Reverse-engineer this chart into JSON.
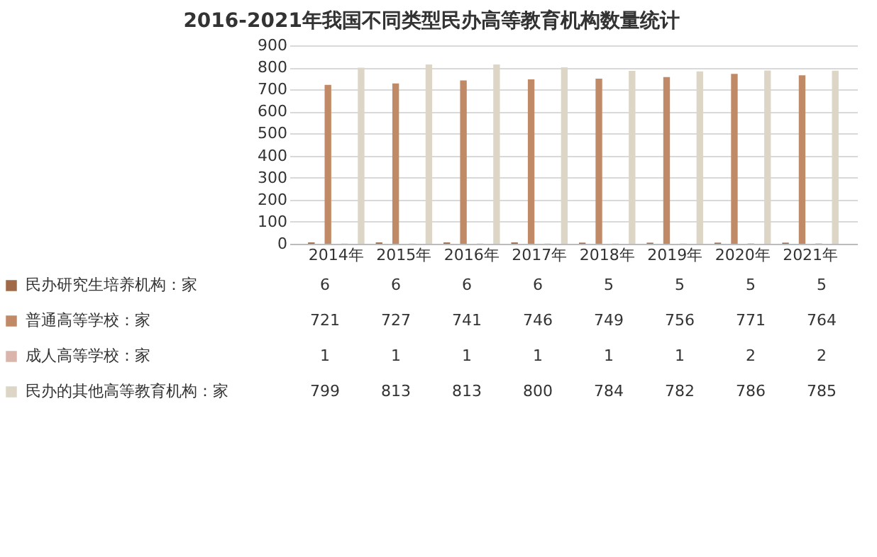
{
  "chart_data": {
    "type": "bar",
    "title": "2016-2021年我国不同类型民办高等教育机构数量统计",
    "categories": [
      "2014年",
      "2015年",
      "2016年",
      "2017年",
      "2018年",
      "2019年",
      "2020年",
      "2021年"
    ],
    "series": [
      {
        "name": "民办研究生培养机构：家",
        "color": "#a06a48",
        "values": [
          6,
          6,
          6,
          6,
          5,
          5,
          5,
          5
        ]
      },
      {
        "name": "普通高等学校：家",
        "color": "#c08a66",
        "values": [
          721,
          727,
          741,
          746,
          749,
          756,
          771,
          764
        ]
      },
      {
        "name": "成人高等学校：家",
        "color": "#d9b5ab",
        "values": [
          1,
          1,
          1,
          1,
          1,
          1,
          2,
          2
        ]
      },
      {
        "name": "民办的其他高等教育机构：家",
        "color": "#ddd6c6",
        "values": [
          799,
          813,
          813,
          800,
          784,
          782,
          786,
          785
        ]
      }
    ],
    "ylim": [
      0,
      900
    ],
    "yticks": [
      0,
      100,
      200,
      300,
      400,
      500,
      600,
      700,
      800,
      900
    ],
    "grid": "y",
    "data_labels": true,
    "legend": "bottom left"
  }
}
